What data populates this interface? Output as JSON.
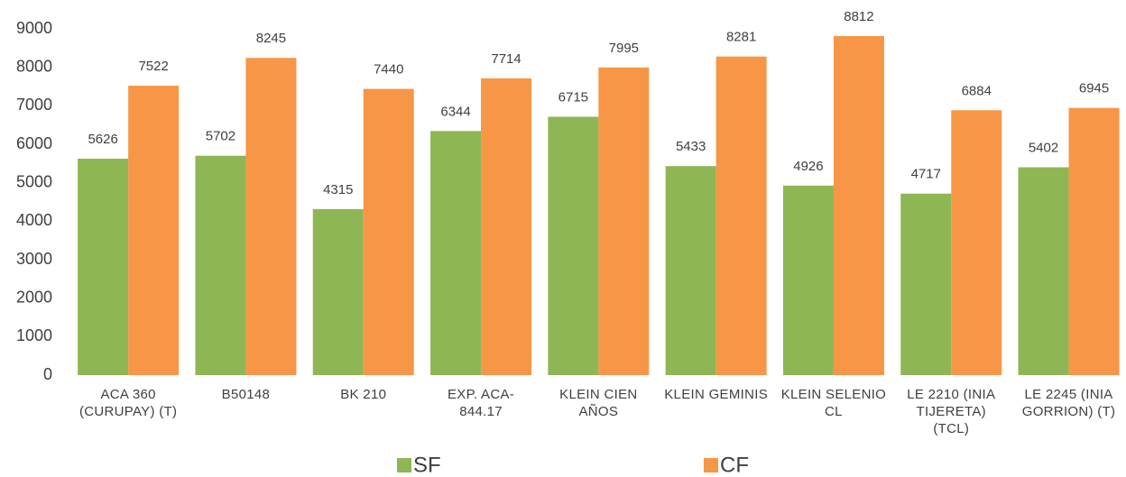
{
  "chart_data": {
    "type": "bar",
    "categories": [
      "ACA 360 (CURUPAY) (T)",
      "B50148",
      "BK 210",
      "EXP. ACA-844.17",
      "KLEIN CIEN AÑOS",
      "KLEIN GEMINIS",
      "KLEIN SELENIO CL",
      "LE 2210 (INIA TIJERETA) (TCL)",
      "LE 2245 (INIA GORRION) (T)"
    ],
    "series": [
      {
        "name": "SF",
        "color": "#8fb654",
        "values": [
          5626,
          5702,
          4315,
          6344,
          6715,
          5433,
          4926,
          4717,
          5402
        ]
      },
      {
        "name": "CF",
        "color": "#f79646",
        "values": [
          7522,
          8245,
          7440,
          7714,
          7995,
          8281,
          8812,
          6884,
          6945
        ]
      }
    ],
    "ylim": [
      0,
      9000
    ],
    "yticks": [
      0,
      1000,
      2000,
      3000,
      4000,
      5000,
      6000,
      7000,
      8000,
      9000
    ],
    "grid": false,
    "legend": "bottom"
  }
}
